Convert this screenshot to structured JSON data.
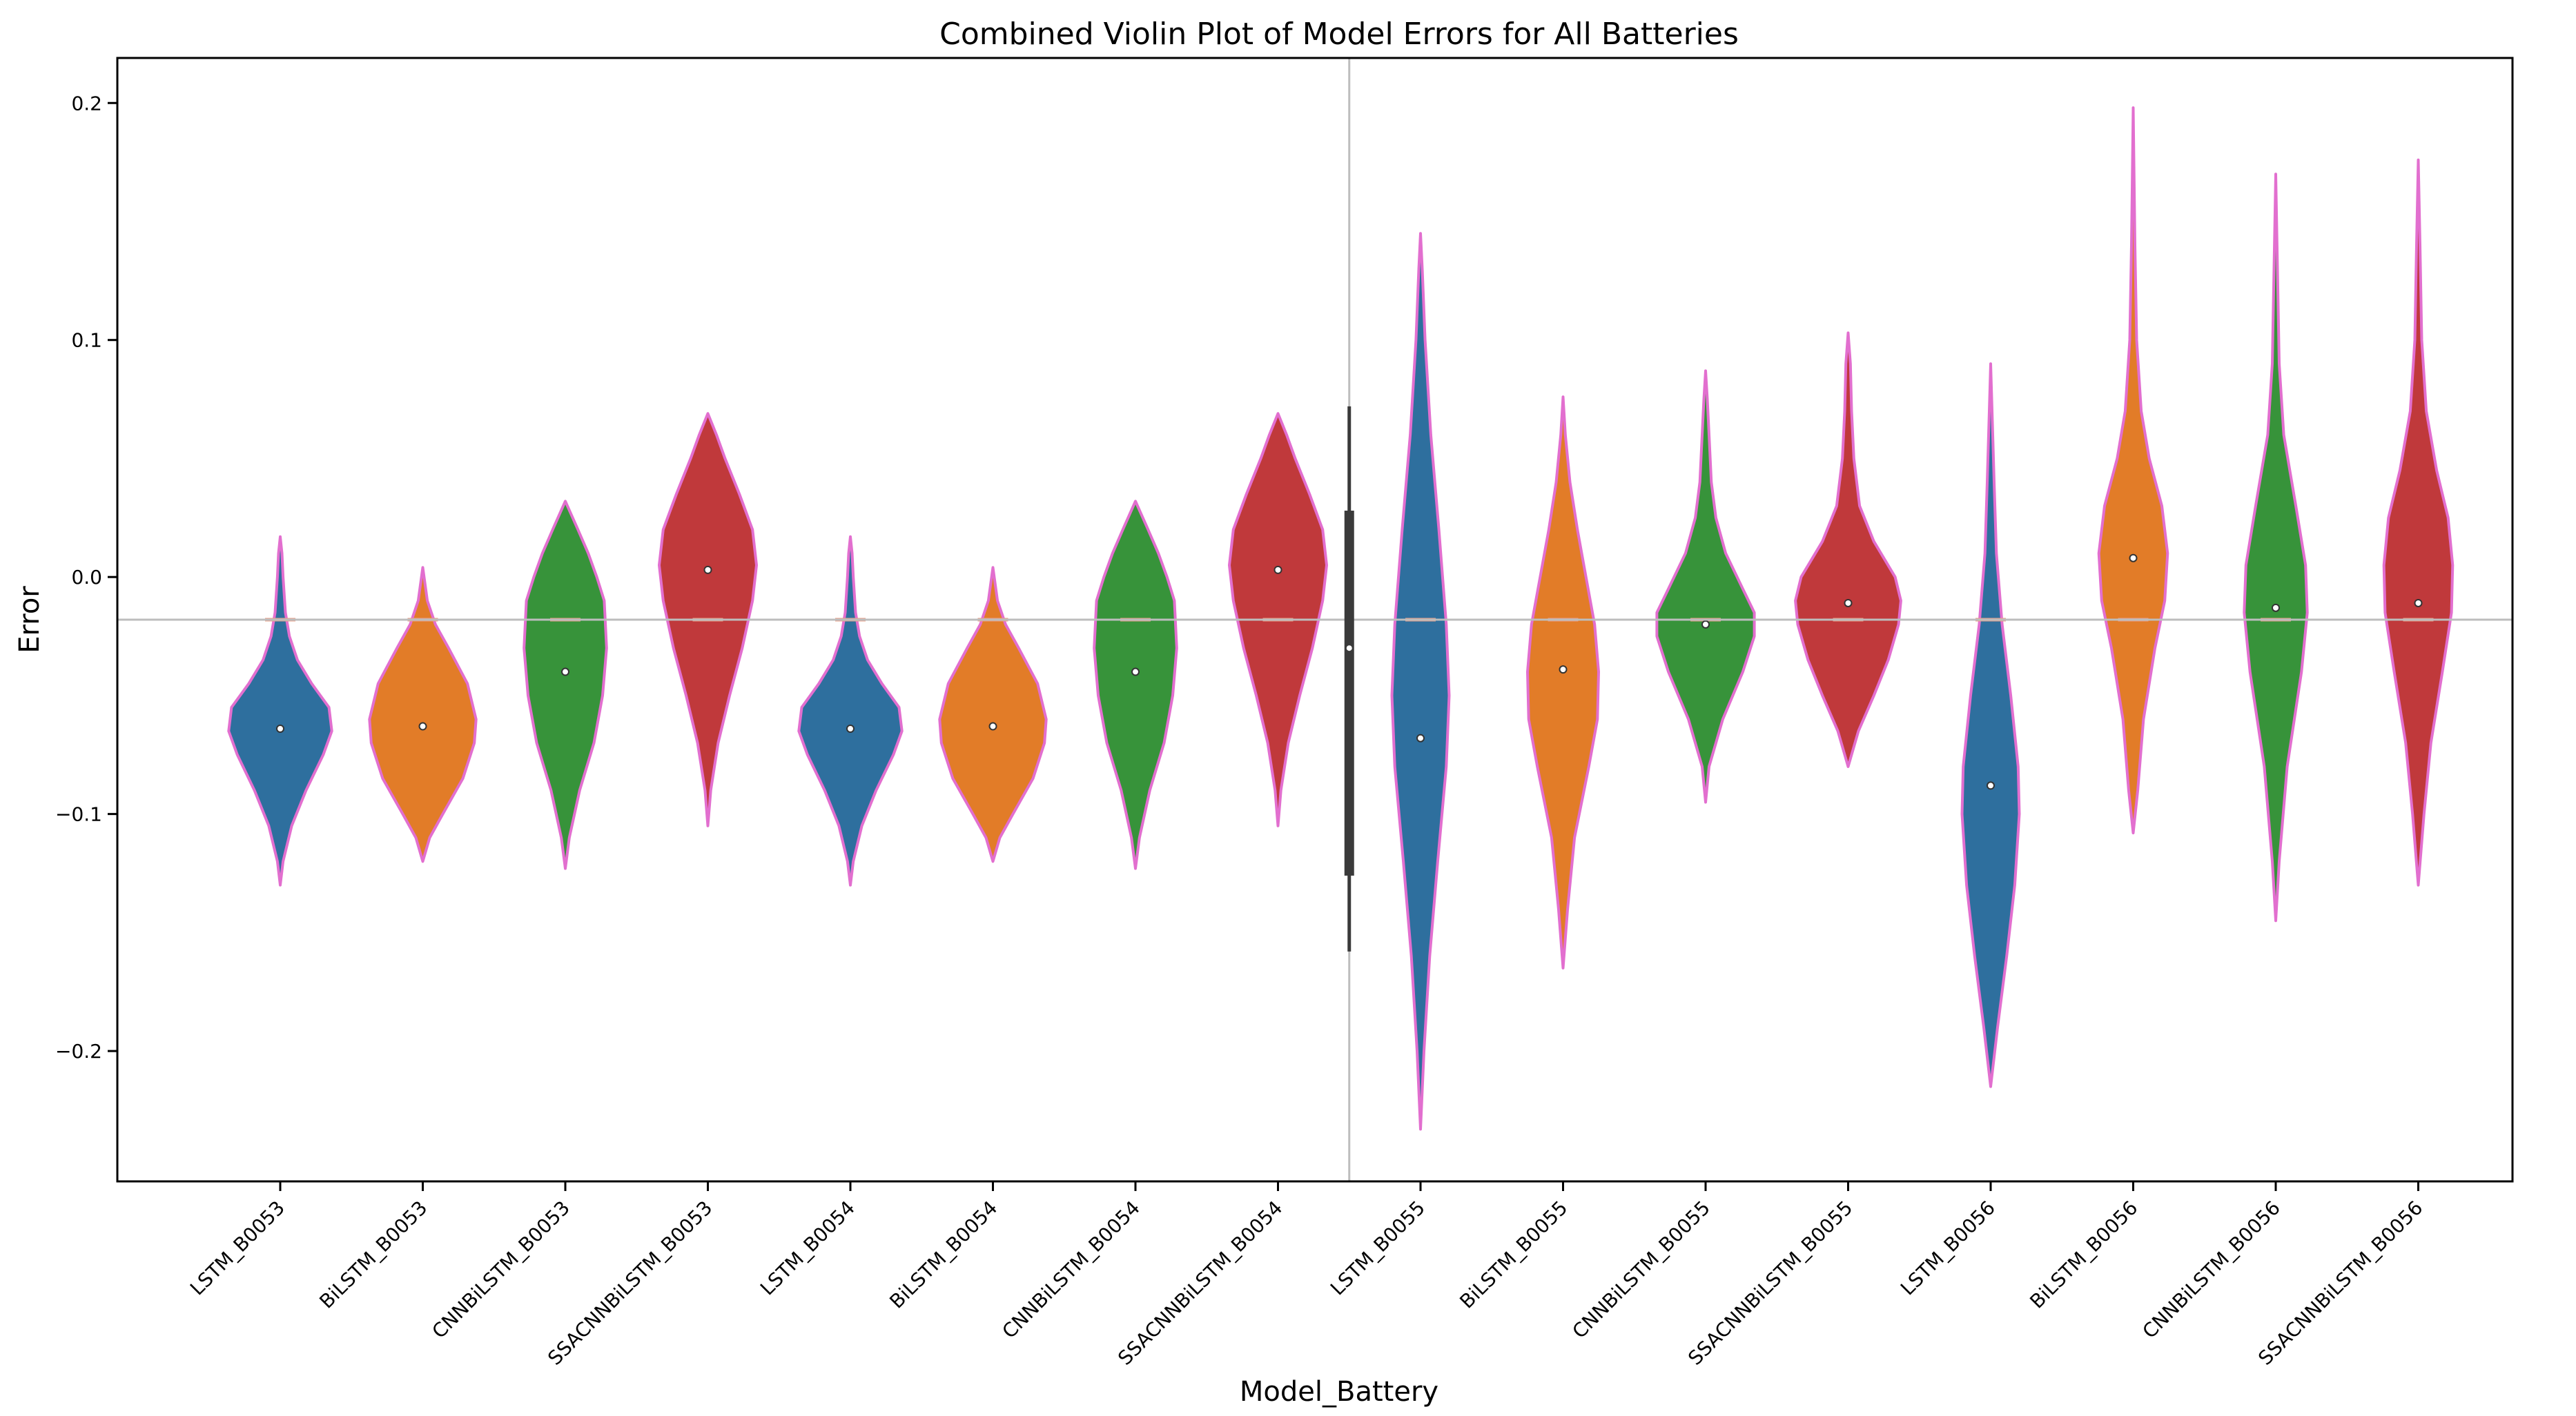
{
  "chart_data": {
    "type": "violin",
    "title": "Combined Violin Plot of Model Errors for All Batteries",
    "xlabel": "Model_Battery",
    "ylabel": "Error",
    "ylim": [
      -0.255,
      0.219
    ],
    "yticks": [
      -0.2,
      -0.1,
      0.0,
      0.1,
      0.2
    ],
    "ytick_labels": [
      "−0.2",
      "−0.1",
      "0.0",
      "0.1",
      "0.2"
    ],
    "reference_hline": -0.018,
    "reference_vline_after": "SSACNNBiLSTM_B0054",
    "colors": {
      "LSTM": "#2e6f9e",
      "BiLSTM": "#e27c28",
      "CNNBiLSTM": "#37933a",
      "SSACNNBiLSTM": "#c0393b",
      "outline": "#e26fcf",
      "refline": "#bdbdbd",
      "medianline": "#e8a08a"
    },
    "violins": [
      {
        "label": "LSTM_B0053",
        "model": "LSTM",
        "median": -0.064,
        "min": -0.13,
        "max": 0.017,
        "profile": [
          [
            -0.13,
            0
          ],
          [
            -0.12,
            0.05
          ],
          [
            -0.105,
            0.2
          ],
          [
            -0.09,
            0.45
          ],
          [
            -0.075,
            0.75
          ],
          [
            -0.065,
            0.9
          ],
          [
            -0.055,
            0.85
          ],
          [
            -0.045,
            0.55
          ],
          [
            -0.035,
            0.3
          ],
          [
            -0.025,
            0.16
          ],
          [
            -0.015,
            0.09
          ],
          [
            0.0,
            0.05
          ],
          [
            0.01,
            0.03
          ],
          [
            0.017,
            0
          ]
        ]
      },
      {
        "label": "BiLSTM_B0053",
        "model": "BiLSTM",
        "median": -0.063,
        "min": -0.12,
        "max": 0.004,
        "profile": [
          [
            -0.12,
            0
          ],
          [
            -0.11,
            0.12
          ],
          [
            -0.1,
            0.35
          ],
          [
            -0.085,
            0.7
          ],
          [
            -0.07,
            0.9
          ],
          [
            -0.06,
            0.93
          ],
          [
            -0.045,
            0.78
          ],
          [
            -0.03,
            0.45
          ],
          [
            -0.02,
            0.22
          ],
          [
            -0.01,
            0.08
          ],
          [
            0.004,
            0
          ]
        ]
      },
      {
        "label": "CNNBiLSTM_B0053",
        "model": "CNNBiLSTM",
        "median": -0.04,
        "min": -0.123,
        "max": 0.032,
        "profile": [
          [
            -0.123,
            0
          ],
          [
            -0.11,
            0.07
          ],
          [
            -0.09,
            0.25
          ],
          [
            -0.07,
            0.5
          ],
          [
            -0.05,
            0.65
          ],
          [
            -0.03,
            0.72
          ],
          [
            -0.01,
            0.68
          ],
          [
            0.0,
            0.55
          ],
          [
            0.01,
            0.4
          ],
          [
            0.02,
            0.22
          ],
          [
            0.032,
            0
          ]
        ]
      },
      {
        "label": "SSACNNBiLSTM_B0053",
        "model": "SSACNNBiLSTM",
        "median": 0.003,
        "min": -0.105,
        "max": 0.069,
        "profile": [
          [
            -0.105,
            0
          ],
          [
            -0.09,
            0.05
          ],
          [
            -0.07,
            0.18
          ],
          [
            -0.05,
            0.38
          ],
          [
            -0.03,
            0.6
          ],
          [
            -0.01,
            0.78
          ],
          [
            0.005,
            0.85
          ],
          [
            0.02,
            0.78
          ],
          [
            0.035,
            0.55
          ],
          [
            0.05,
            0.3
          ],
          [
            0.06,
            0.15
          ],
          [
            0.069,
            0
          ]
        ]
      },
      {
        "label": "LSTM_B0054",
        "model": "LSTM",
        "median": -0.064,
        "min": -0.13,
        "max": 0.017,
        "profile": [
          [
            -0.13,
            0
          ],
          [
            -0.12,
            0.05
          ],
          [
            -0.105,
            0.2
          ],
          [
            -0.09,
            0.45
          ],
          [
            -0.075,
            0.75
          ],
          [
            -0.065,
            0.9
          ],
          [
            -0.055,
            0.85
          ],
          [
            -0.045,
            0.55
          ],
          [
            -0.035,
            0.3
          ],
          [
            -0.025,
            0.16
          ],
          [
            -0.015,
            0.09
          ],
          [
            0.0,
            0.05
          ],
          [
            0.01,
            0.03
          ],
          [
            0.017,
            0
          ]
        ]
      },
      {
        "label": "BiLSTM_B0054",
        "model": "BiLSTM",
        "median": -0.063,
        "min": -0.12,
        "max": 0.004,
        "profile": [
          [
            -0.12,
            0
          ],
          [
            -0.11,
            0.12
          ],
          [
            -0.1,
            0.35
          ],
          [
            -0.085,
            0.7
          ],
          [
            -0.07,
            0.9
          ],
          [
            -0.06,
            0.93
          ],
          [
            -0.045,
            0.78
          ],
          [
            -0.03,
            0.45
          ],
          [
            -0.02,
            0.22
          ],
          [
            -0.01,
            0.08
          ],
          [
            0.004,
            0
          ]
        ]
      },
      {
        "label": "CNNBiLSTM_B0054",
        "model": "CNNBiLSTM",
        "median": -0.04,
        "min": -0.123,
        "max": 0.032,
        "profile": [
          [
            -0.123,
            0
          ],
          [
            -0.11,
            0.07
          ],
          [
            -0.09,
            0.25
          ],
          [
            -0.07,
            0.5
          ],
          [
            -0.05,
            0.65
          ],
          [
            -0.03,
            0.72
          ],
          [
            -0.01,
            0.68
          ],
          [
            0.0,
            0.55
          ],
          [
            0.01,
            0.4
          ],
          [
            0.02,
            0.22
          ],
          [
            0.032,
            0
          ]
        ]
      },
      {
        "label": "SSACNNBiLSTM_B0054",
        "model": "SSACNNBiLSTM",
        "median": 0.003,
        "min": -0.105,
        "max": 0.069,
        "profile": [
          [
            -0.105,
            0
          ],
          [
            -0.09,
            0.05
          ],
          [
            -0.07,
            0.18
          ],
          [
            -0.05,
            0.38
          ],
          [
            -0.03,
            0.6
          ],
          [
            -0.01,
            0.78
          ],
          [
            0.005,
            0.85
          ],
          [
            0.02,
            0.78
          ],
          [
            0.035,
            0.55
          ],
          [
            0.05,
            0.3
          ],
          [
            0.06,
            0.15
          ],
          [
            0.069,
            0
          ]
        ]
      },
      {
        "label": "LSTM_B0055",
        "model": "LSTM",
        "median": -0.068,
        "min": -0.233,
        "max": 0.145,
        "profile": [
          [
            -0.233,
            0
          ],
          [
            -0.2,
            0.06
          ],
          [
            -0.16,
            0.16
          ],
          [
            -0.12,
            0.3
          ],
          [
            -0.08,
            0.45
          ],
          [
            -0.05,
            0.5
          ],
          [
            -0.02,
            0.45
          ],
          [
            0.02,
            0.32
          ],
          [
            0.06,
            0.18
          ],
          [
            0.1,
            0.08
          ],
          [
            0.13,
            0.03
          ],
          [
            0.145,
            0
          ]
        ]
      },
      {
        "label": "BiLSTM_B0055",
        "model": "BiLSTM",
        "median": -0.039,
        "min": -0.165,
        "max": 0.076,
        "profile": [
          [
            -0.165,
            0
          ],
          [
            -0.14,
            0.08
          ],
          [
            -0.11,
            0.2
          ],
          [
            -0.08,
            0.45
          ],
          [
            -0.06,
            0.6
          ],
          [
            -0.04,
            0.62
          ],
          [
            -0.02,
            0.55
          ],
          [
            0.0,
            0.4
          ],
          [
            0.02,
            0.25
          ],
          [
            0.04,
            0.12
          ],
          [
            0.06,
            0.04
          ],
          [
            0.076,
            0
          ]
        ]
      },
      {
        "label": "CNNBiLSTM_B0055",
        "model": "CNNBiLSTM",
        "median": -0.02,
        "min": -0.095,
        "max": 0.087,
        "profile": [
          [
            -0.095,
            0
          ],
          [
            -0.08,
            0.06
          ],
          [
            -0.06,
            0.3
          ],
          [
            -0.04,
            0.65
          ],
          [
            -0.025,
            0.85
          ],
          [
            -0.015,
            0.85
          ],
          [
            -0.005,
            0.65
          ],
          [
            0.01,
            0.35
          ],
          [
            0.025,
            0.18
          ],
          [
            0.04,
            0.1
          ],
          [
            0.06,
            0.06
          ],
          [
            0.075,
            0.03
          ],
          [
            0.087,
            0
          ]
        ]
      },
      {
        "label": "SSACNNBiLSTM_B0055",
        "model": "SSACNNBiLSTM",
        "median": -0.011,
        "min": -0.08,
        "max": 0.103,
        "profile": [
          [
            -0.08,
            0
          ],
          [
            -0.065,
            0.18
          ],
          [
            -0.05,
            0.45
          ],
          [
            -0.035,
            0.7
          ],
          [
            -0.02,
            0.88
          ],
          [
            -0.01,
            0.92
          ],
          [
            0.0,
            0.82
          ],
          [
            0.015,
            0.45
          ],
          [
            0.03,
            0.2
          ],
          [
            0.05,
            0.1
          ],
          [
            0.07,
            0.06
          ],
          [
            0.09,
            0.04
          ],
          [
            0.103,
            0
          ]
        ]
      },
      {
        "label": "LSTM_B0056",
        "model": "LSTM",
        "median": -0.088,
        "min": -0.215,
        "max": 0.09,
        "profile": [
          [
            -0.215,
            0
          ],
          [
            -0.19,
            0.12
          ],
          [
            -0.16,
            0.28
          ],
          [
            -0.13,
            0.42
          ],
          [
            -0.1,
            0.5
          ],
          [
            -0.08,
            0.48
          ],
          [
            -0.05,
            0.35
          ],
          [
            -0.02,
            0.2
          ],
          [
            0.01,
            0.1
          ],
          [
            0.04,
            0.06
          ],
          [
            0.065,
            0.03
          ],
          [
            0.09,
            0
          ]
        ]
      },
      {
        "label": "BiLSTM_B0056",
        "model": "BiLSTM",
        "median": 0.008,
        "min": -0.108,
        "max": 0.198,
        "profile": [
          [
            -0.108,
            0
          ],
          [
            -0.09,
            0.08
          ],
          [
            -0.06,
            0.18
          ],
          [
            -0.03,
            0.38
          ],
          [
            -0.01,
            0.55
          ],
          [
            0.01,
            0.6
          ],
          [
            0.03,
            0.5
          ],
          [
            0.05,
            0.28
          ],
          [
            0.07,
            0.14
          ],
          [
            0.1,
            0.06
          ],
          [
            0.14,
            0.03
          ],
          [
            0.198,
            0
          ]
        ]
      },
      {
        "label": "CNNBiLSTM_B0056",
        "model": "CNNBiLSTM",
        "median": -0.013,
        "min": -0.145,
        "max": 0.17,
        "profile": [
          [
            -0.145,
            0
          ],
          [
            -0.12,
            0.06
          ],
          [
            -0.08,
            0.2
          ],
          [
            -0.04,
            0.45
          ],
          [
            -0.015,
            0.55
          ],
          [
            0.005,
            0.52
          ],
          [
            0.03,
            0.35
          ],
          [
            0.06,
            0.14
          ],
          [
            0.09,
            0.06
          ],
          [
            0.13,
            0.03
          ],
          [
            0.17,
            0
          ]
        ]
      },
      {
        "label": "SSACNNBiLSTM_B0056",
        "model": "SSACNNBiLSTM",
        "median": -0.011,
        "min": -0.13,
        "max": 0.176,
        "profile": [
          [
            -0.13,
            0
          ],
          [
            -0.1,
            0.1
          ],
          [
            -0.07,
            0.22
          ],
          [
            -0.04,
            0.42
          ],
          [
            -0.015,
            0.58
          ],
          [
            0.005,
            0.6
          ],
          [
            0.025,
            0.52
          ],
          [
            0.045,
            0.32
          ],
          [
            0.07,
            0.14
          ],
          [
            0.1,
            0.06
          ],
          [
            0.14,
            0.03
          ],
          [
            0.176,
            0
          ]
        ]
      }
    ],
    "dark_box": {
      "q1": -0.126,
      "q3": 0.028,
      "whisker_low": -0.158,
      "whisker_high": 0.072,
      "median": -0.03
    }
  }
}
